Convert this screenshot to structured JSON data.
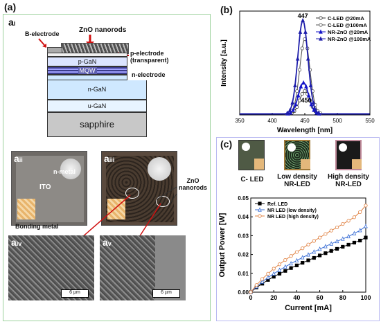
{
  "panel_a": {
    "label": "(a)",
    "ai": {
      "letter": "a",
      "sub": "i"
    },
    "aii": {
      "letter": "a",
      "sub": "ii"
    },
    "aiii": {
      "letter": "a",
      "sub": "iii"
    },
    "aiv": {
      "letter": "a",
      "sub": "iv"
    },
    "av": {
      "letter": "a",
      "sub": "v"
    },
    "diagram": {
      "zno_nanorods": "ZnO nanorods",
      "b_electrode": "B-electrode",
      "p_electrode": "p-electrode\n(transparent)",
      "n_electrode": "n-electrode",
      "layers": [
        "p-GaN",
        "MQW",
        "n-GaN",
        "u-GaN",
        "sapphire"
      ]
    },
    "photo_labels": {
      "n_metal": "n-metal",
      "ito": "ITO",
      "bonding_metal": "Bonding metal",
      "zno_nanorods_2": "ZnO\nnanorods"
    },
    "scalebar": "6 µm"
  },
  "panel_b": {
    "label": "(b)",
    "annot_447": "447",
    "annot_450": "450"
  },
  "panel_c": {
    "label": "(c)",
    "thumbs": [
      "C- LED",
      "Low density\nNR-LED",
      "High density\nNR-LED"
    ]
  },
  "chart_data": [
    {
      "type": "line",
      "id": "b",
      "xlabel": "Wavelength [nm]",
      "ylabel": "Intensity [a.u.]",
      "xlim": [
        350,
        550
      ],
      "xticks": [
        350,
        400,
        450,
        500,
        550
      ],
      "legend": "top-right",
      "series": [
        {
          "name": "C-LED @20mA",
          "peak": 450,
          "height": 0.22,
          "color": "#333333",
          "marker": "open-circle"
        },
        {
          "name": "C-LED @100mA",
          "peak": 450,
          "height": 0.72,
          "color": "#555555",
          "marker": "open-circle"
        },
        {
          "name": "NR-ZnO @20mA",
          "peak": 448,
          "height": 0.3,
          "color": "#1515c8",
          "marker": "filled-triangle"
        },
        {
          "name": "NR-ZnO @100mA",
          "peak": 447,
          "height": 0.9,
          "color": "#1e1eaa",
          "marker": "filled-star"
        }
      ]
    },
    {
      "type": "line",
      "id": "c",
      "xlabel": "Current [mA]",
      "ylabel": "Output Power [W]",
      "xlim": [
        0,
        100
      ],
      "ylim": [
        0,
        0.05
      ],
      "xticks": [
        0,
        20,
        40,
        60,
        80,
        100
      ],
      "yticks": [
        "0.00",
        "0.01",
        "0.02",
        "0.03",
        "0.04",
        "0.05"
      ],
      "legend": "top-left",
      "series": [
        {
          "name": "Ref. LED",
          "color": "#000000",
          "marker": "filled-square",
          "x": [
            0,
            5,
            10,
            15,
            20,
            25,
            30,
            35,
            40,
            45,
            50,
            55,
            60,
            65,
            70,
            75,
            80,
            85,
            90,
            95,
            100
          ],
          "y": [
            0.0,
            0.0025,
            0.0045,
            0.0065,
            0.0082,
            0.0098,
            0.0113,
            0.0128,
            0.0142,
            0.0156,
            0.0169,
            0.0182,
            0.0195,
            0.0207,
            0.0219,
            0.023,
            0.0241,
            0.0252,
            0.0263,
            0.0274,
            0.029
          ]
        },
        {
          "name": "NR LED (low density)",
          "color": "#3b6fd6",
          "marker": "open-triangle",
          "x": [
            0,
            5,
            10,
            15,
            20,
            25,
            30,
            35,
            40,
            45,
            50,
            55,
            60,
            65,
            70,
            75,
            80,
            85,
            90,
            95,
            100
          ],
          "y": [
            0.0,
            0.003,
            0.0055,
            0.0078,
            0.0098,
            0.0117,
            0.0135,
            0.0152,
            0.0168,
            0.0184,
            0.0199,
            0.0214,
            0.0229,
            0.0243,
            0.0257,
            0.027,
            0.0283,
            0.0296,
            0.0312,
            0.0328,
            0.035
          ]
        },
        {
          "name": "NR LED (high density)",
          "color": "#e08040",
          "marker": "open-circle",
          "x": [
            0,
            5,
            10,
            15,
            20,
            25,
            30,
            35,
            40,
            45,
            50,
            55,
            60,
            65,
            70,
            75,
            80,
            85,
            90,
            95,
            100
          ],
          "y": [
            0.0,
            0.0038,
            0.007,
            0.0098,
            0.0125,
            0.0148,
            0.0171,
            0.0192,
            0.0213,
            0.0233,
            0.0253,
            0.0272,
            0.029,
            0.0309,
            0.0327,
            0.0344,
            0.0362,
            0.0379,
            0.0398,
            0.0425,
            0.046
          ]
        }
      ]
    }
  ]
}
